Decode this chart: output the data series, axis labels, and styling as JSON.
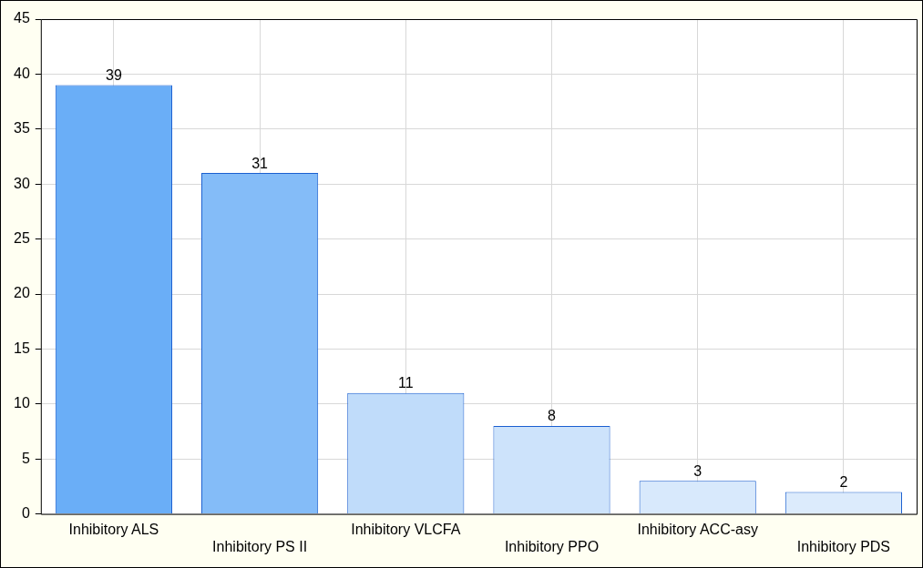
{
  "chart_data": {
    "type": "bar",
    "categories": [
      "Inhibitory ALS",
      "Inhibitory PS II",
      "Inhibitory VLCFA",
      "Inhibitory PPO",
      "Inhibitory ACC-asy",
      "Inhibitory PDS"
    ],
    "values": [
      39,
      31,
      11,
      8,
      3,
      2
    ],
    "colors": [
      "#6aaef7",
      "#84bcf8",
      "#c0dcfa",
      "#cde3fb",
      "#d8e9fc",
      "#dcebfc"
    ],
    "ylim": [
      0,
      45
    ],
    "yticks": [
      0,
      5,
      10,
      15,
      20,
      25,
      30,
      35,
      40,
      45
    ],
    "grid": true,
    "data_labels": true
  }
}
